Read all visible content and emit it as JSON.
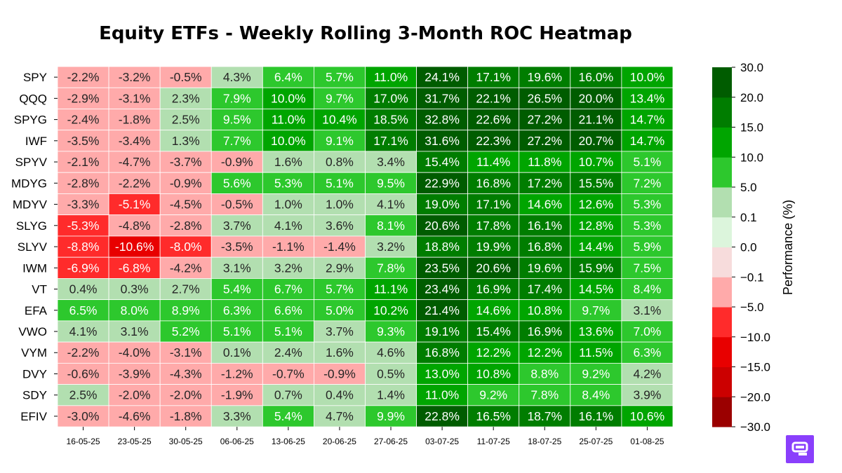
{
  "chart_data": {
    "type": "heatmap",
    "title": "Equity ETFs - Weekly Rolling 3-Month ROC Heatmap",
    "rows": [
      "SPY",
      "QQQ",
      "SPYG",
      "IWF",
      "SPYV",
      "MDYG",
      "MDYV",
      "SLYG",
      "SLYV",
      "IWM",
      "VT",
      "EFA",
      "VWO",
      "VYM",
      "DVY",
      "SDY",
      "EFIV"
    ],
    "columns": [
      "16-05-25",
      "23-05-25",
      "30-05-25",
      "06-06-25",
      "13-06-25",
      "20-06-25",
      "27-06-25",
      "03-07-25",
      "11-07-25",
      "18-07-25",
      "25-07-25",
      "01-08-25"
    ],
    "values": [
      [
        -2.2,
        -3.2,
        -0.5,
        4.3,
        6.4,
        5.7,
        11.0,
        24.1,
        17.1,
        19.6,
        16.0,
        10.0
      ],
      [
        -2.9,
        -3.1,
        2.3,
        7.9,
        10.0,
        9.7,
        17.0,
        31.7,
        22.1,
        26.5,
        20.0,
        13.4
      ],
      [
        -2.4,
        -1.8,
        2.5,
        9.5,
        11.0,
        10.4,
        18.5,
        32.8,
        22.6,
        27.2,
        21.1,
        14.7
      ],
      [
        -3.5,
        -3.4,
        1.3,
        7.7,
        10.0,
        9.1,
        17.1,
        31.6,
        22.3,
        27.2,
        20.7,
        14.7
      ],
      [
        -2.1,
        -4.7,
        -3.7,
        -0.9,
        1.6,
        0.8,
        3.4,
        15.4,
        11.4,
        11.8,
        10.7,
        5.1
      ],
      [
        -2.8,
        -2.2,
        -0.9,
        5.6,
        5.3,
        5.1,
        9.5,
        22.9,
        16.8,
        17.2,
        15.5,
        7.2
      ],
      [
        -3.3,
        -5.1,
        -4.5,
        -0.5,
        1.0,
        1.0,
        4.1,
        19.0,
        17.1,
        14.6,
        12.6,
        5.3
      ],
      [
        -5.3,
        -4.8,
        -2.8,
        3.7,
        4.1,
        3.6,
        8.1,
        20.6,
        17.8,
        16.1,
        12.8,
        5.3
      ],
      [
        -8.8,
        -10.6,
        -8.0,
        -3.5,
        -1.1,
        -1.4,
        3.2,
        18.8,
        19.9,
        16.8,
        14.4,
        5.9
      ],
      [
        -6.9,
        -6.8,
        -4.2,
        3.1,
        3.2,
        2.9,
        7.8,
        23.5,
        20.6,
        19.6,
        15.9,
        7.5
      ],
      [
        0.4,
        0.3,
        2.7,
        5.4,
        6.7,
        5.7,
        11.1,
        23.4,
        16.9,
        17.4,
        14.5,
        8.4
      ],
      [
        6.5,
        8.0,
        8.9,
        6.3,
        6.6,
        5.0,
        10.2,
        21.4,
        14.6,
        10.8,
        9.7,
        3.1
      ],
      [
        4.1,
        3.1,
        5.2,
        5.1,
        5.1,
        3.7,
        9.3,
        19.1,
        15.4,
        16.9,
        13.6,
        7.0
      ],
      [
        -2.2,
        -4.0,
        -3.1,
        0.1,
        2.4,
        1.6,
        4.6,
        16.8,
        12.2,
        12.2,
        11.5,
        6.3
      ],
      [
        -0.6,
        -3.9,
        -4.3,
        -1.2,
        -0.7,
        -0.9,
        0.5,
        13.0,
        10.8,
        8.8,
        9.2,
        4.2
      ],
      [
        2.5,
        -2.0,
        -2.0,
        -1.9,
        0.7,
        0.4,
        1.4,
        11.0,
        9.2,
        7.8,
        8.4,
        3.9
      ],
      [
        -3.0,
        -4.6,
        -1.8,
        3.3,
        5.4,
        4.7,
        9.9,
        22.8,
        16.5,
        18.7,
        16.1,
        10.6
      ]
    ],
    "colorbar": {
      "label": "Performance (%)",
      "bounds": [
        -30.0,
        -20.0,
        -15.0,
        -10.0,
        -5.0,
        -0.1,
        0.0,
        0.1,
        5.0,
        10.0,
        15.0,
        20.0,
        30.0
      ],
      "tick_labels": [
        "−30.0",
        "−20.0",
        "−15.0",
        "−10.0",
        "−5.0",
        "−0.1",
        "0.0",
        "0.1",
        "5.0",
        "10.0",
        "15.0",
        "20.0",
        "30.0"
      ],
      "colors": [
        "#9b0000",
        "#cc0000",
        "#e80000",
        "#ff2b2b",
        "#ffaaaa",
        "#f7dcdc",
        "#dcf5dc",
        "#b2dfb0",
        "#2dc82d",
        "#00a500",
        "#007d00",
        "#005c00"
      ]
    }
  }
}
